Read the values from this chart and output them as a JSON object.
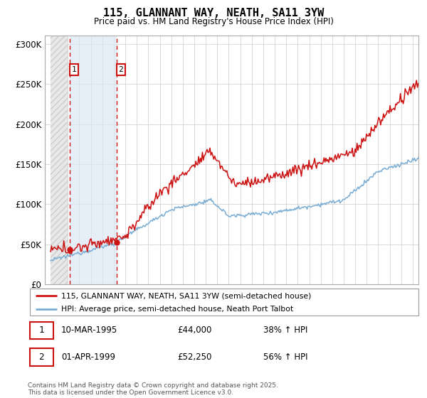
{
  "title": "115, GLANNANT WAY, NEATH, SA11 3YW",
  "subtitle": "Price paid vs. HM Land Registry's House Price Index (HPI)",
  "ylim": [
    0,
    310000
  ],
  "yticks": [
    0,
    50000,
    100000,
    150000,
    200000,
    250000,
    300000
  ],
  "ytick_labels": [
    "£0",
    "£50K",
    "£100K",
    "£150K",
    "£200K",
    "£250K",
    "£300K"
  ],
  "hpi_color": "#7aadd4",
  "price_color": "#cc1111",
  "sale1_x": 1995.19,
  "sale1_price": 44000,
  "sale2_x": 1999.25,
  "sale2_price": 52250,
  "sale1_date": "10-MAR-1995",
  "sale1_hpi": "38% ↑ HPI",
  "sale2_date": "01-APR-1999",
  "sale2_hpi": "56% ↑ HPI",
  "legend_line1": "115, GLANNANT WAY, NEATH, SA11 3YW (semi-detached house)",
  "legend_line2": "HPI: Average price, semi-detached house, Neath Port Talbot",
  "footnote": "Contains HM Land Registry data © Crown copyright and database right 2025.\nThis data is licensed under the Open Government Licence v3.0.",
  "xmin": 1993.5,
  "xmax": 2025.5,
  "hatch_end": 1995.0,
  "blue_fill_start": 1995.19,
  "blue_fill_end": 1999.25
}
